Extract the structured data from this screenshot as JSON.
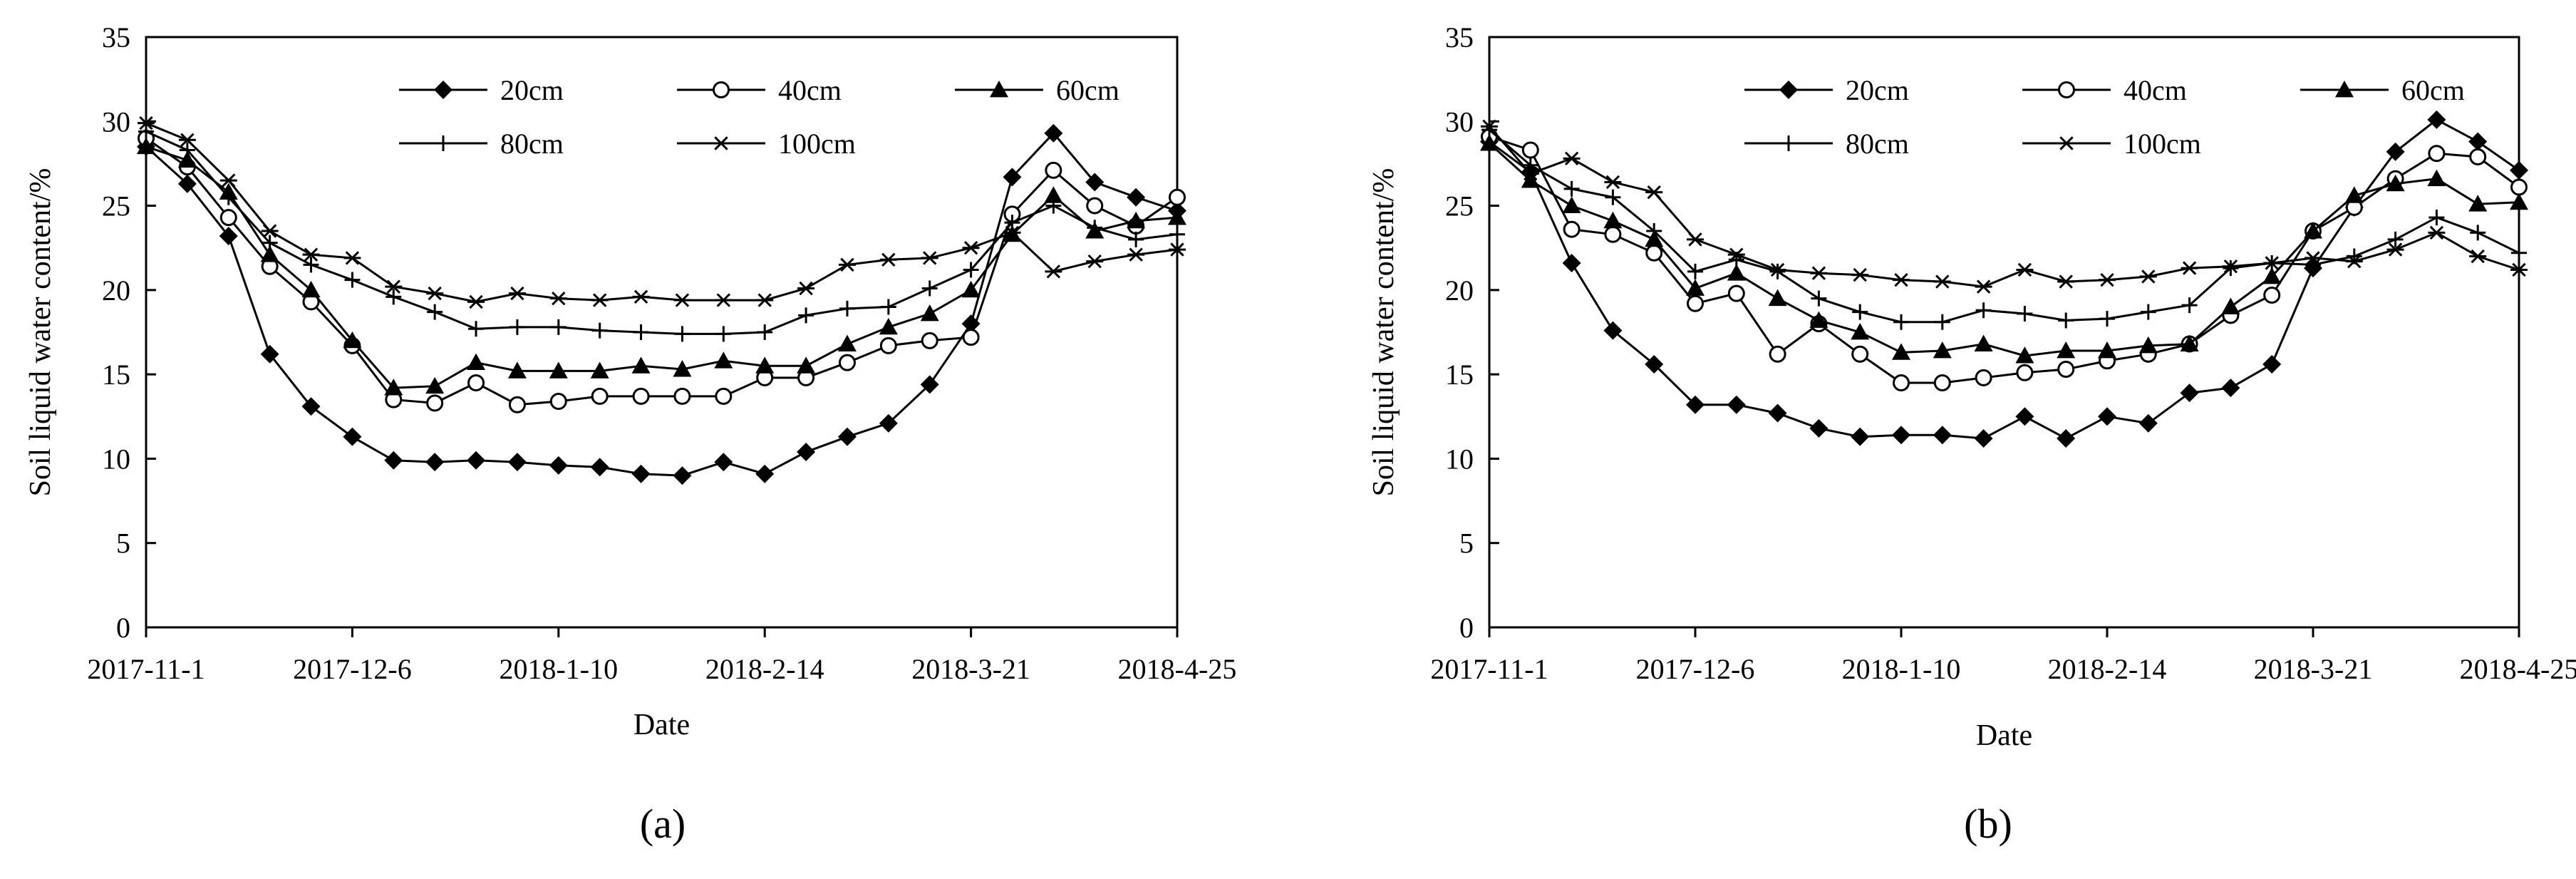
{
  "chart_data": [
    {
      "type": "line",
      "panel_label": "(a)",
      "title": "",
      "xlabel": "Date",
      "ylabel": "Soil liquid water content/%",
      "ylim": [
        0,
        35
      ],
      "yticks": [
        0,
        5,
        10,
        15,
        20,
        25,
        30,
        35
      ],
      "xlim": [
        0,
        175
      ],
      "xticks": [
        0,
        35,
        70,
        105,
        140,
        175
      ],
      "xtick_labels": [
        "2017-11-1",
        "2017-12-6",
        "2018-1-10",
        "2018-2-14",
        "2018-3-21",
        "2018-4-25"
      ],
      "legend": "top-center",
      "x": [
        0,
        7,
        14,
        21,
        28,
        35,
        42,
        49,
        56,
        63,
        70,
        77,
        84,
        91,
        98,
        105,
        112,
        119,
        126,
        133,
        140,
        147,
        154,
        161,
        168,
        175
      ],
      "series": [
        {
          "name": "20cm",
          "marker": "diamond",
          "values": [
            28.5,
            26.3,
            23.2,
            16.2,
            13.1,
            11.3,
            9.9,
            9.8,
            9.9,
            9.8,
            9.6,
            9.5,
            9.1,
            9.0,
            9.8,
            9.1,
            10.4,
            11.3,
            12.1,
            14.4,
            18.0,
            26.7,
            29.3,
            26.4,
            25.5,
            24.7
          ]
        },
        {
          "name": "40cm",
          "marker": "circle-open",
          "values": [
            29.0,
            27.3,
            24.3,
            21.4,
            19.3,
            16.7,
            13.5,
            13.3,
            14.5,
            13.2,
            13.4,
            13.7,
            13.7,
            13.7,
            13.7,
            14.8,
            14.8,
            15.7,
            16.7,
            17.0,
            17.2,
            24.5,
            27.1,
            25.0,
            23.8,
            25.5
          ]
        },
        {
          "name": "60cm",
          "marker": "triangle",
          "values": [
            28.5,
            27.7,
            25.8,
            22.1,
            20.0,
            17.0,
            14.2,
            14.3,
            15.7,
            15.2,
            15.2,
            15.2,
            15.5,
            15.3,
            15.8,
            15.5,
            15.5,
            16.8,
            17.8,
            18.6,
            20.0,
            23.3,
            25.6,
            23.5,
            24.1,
            24.3
          ]
        },
        {
          "name": "80cm",
          "marker": "plus",
          "values": [
            29.4,
            28.3,
            25.5,
            22.8,
            21.5,
            20.6,
            19.6,
            18.7,
            17.7,
            17.8,
            17.8,
            17.6,
            17.5,
            17.4,
            17.4,
            17.5,
            18.5,
            18.9,
            19.0,
            20.1,
            21.2,
            24.0,
            25.0,
            23.7,
            23.0,
            23.3
          ]
        },
        {
          "name": "100cm",
          "marker": "asterisk",
          "values": [
            29.9,
            28.9,
            26.5,
            23.5,
            22.1,
            21.9,
            20.2,
            19.8,
            19.3,
            19.8,
            19.5,
            19.4,
            19.6,
            19.4,
            19.4,
            19.4,
            20.1,
            21.5,
            21.8,
            21.9,
            22.5,
            23.4,
            21.1,
            21.7,
            22.1,
            22.4
          ]
        }
      ]
    },
    {
      "type": "line",
      "panel_label": "(b)",
      "title": "",
      "xlabel": "Date",
      "ylabel": "Soil liquid water content/%",
      "ylim": [
        0,
        35
      ],
      "yticks": [
        0,
        5,
        10,
        15,
        20,
        25,
        30,
        35
      ],
      "xlim": [
        0,
        175
      ],
      "xticks": [
        0,
        35,
        70,
        105,
        140,
        175
      ],
      "xtick_labels": [
        "2017-11-1",
        "2017-12-6",
        "2018-1-10",
        "2018-2-14",
        "2018-3-21",
        "2018-4-25"
      ],
      "legend": "top-center",
      "x": [
        0,
        7,
        14,
        21,
        28,
        35,
        42,
        49,
        56,
        63,
        70,
        77,
        84,
        91,
        98,
        105,
        112,
        119,
        126,
        133,
        140,
        147,
        154,
        161,
        168,
        175
      ],
      "series": [
        {
          "name": "20cm",
          "marker": "diamond",
          "values": [
            28.8,
            27.0,
            21.6,
            17.6,
            15.6,
            13.2,
            13.2,
            12.7,
            11.8,
            11.3,
            11.4,
            11.4,
            11.2,
            12.5,
            11.2,
            12.5,
            12.1,
            13.9,
            14.2,
            15.6,
            21.3,
            24.9,
            28.2,
            30.1,
            28.8,
            27.1
          ]
        },
        {
          "name": "40cm",
          "marker": "circle-open",
          "values": [
            29.1,
            28.3,
            23.6,
            23.3,
            22.2,
            19.2,
            19.8,
            16.2,
            18.0,
            16.2,
            14.5,
            14.5,
            14.8,
            15.1,
            15.3,
            15.8,
            16.2,
            16.8,
            18.5,
            19.7,
            23.5,
            24.9,
            26.6,
            28.1,
            27.9,
            26.1
          ]
        },
        {
          "name": "60cm",
          "marker": "triangle",
          "values": [
            28.7,
            26.5,
            25.0,
            24.1,
            23.0,
            20.1,
            21.0,
            19.5,
            18.2,
            17.5,
            16.3,
            16.4,
            16.8,
            16.1,
            16.4,
            16.4,
            16.7,
            16.8,
            19.0,
            20.8,
            23.5,
            25.6,
            26.3,
            26.6,
            25.1,
            25.2
          ]
        },
        {
          "name": "80cm",
          "marker": "plus",
          "values": [
            29.5,
            27.4,
            26.0,
            25.5,
            23.5,
            21.1,
            21.8,
            21.1,
            19.5,
            18.7,
            18.1,
            18.1,
            18.8,
            18.6,
            18.2,
            18.3,
            18.7,
            19.1,
            21.3,
            21.6,
            21.5,
            22.0,
            23.0,
            24.3,
            23.4,
            22.2
          ]
        },
        {
          "name": "100cm",
          "marker": "asterisk",
          "values": [
            29.7,
            26.9,
            27.8,
            26.4,
            25.8,
            23.0,
            22.1,
            21.2,
            21.0,
            20.9,
            20.6,
            20.5,
            20.2,
            21.2,
            20.5,
            20.6,
            20.8,
            21.3,
            21.4,
            21.6,
            21.9,
            21.7,
            22.4,
            23.4,
            22.0,
            21.2
          ]
        }
      ]
    }
  ]
}
